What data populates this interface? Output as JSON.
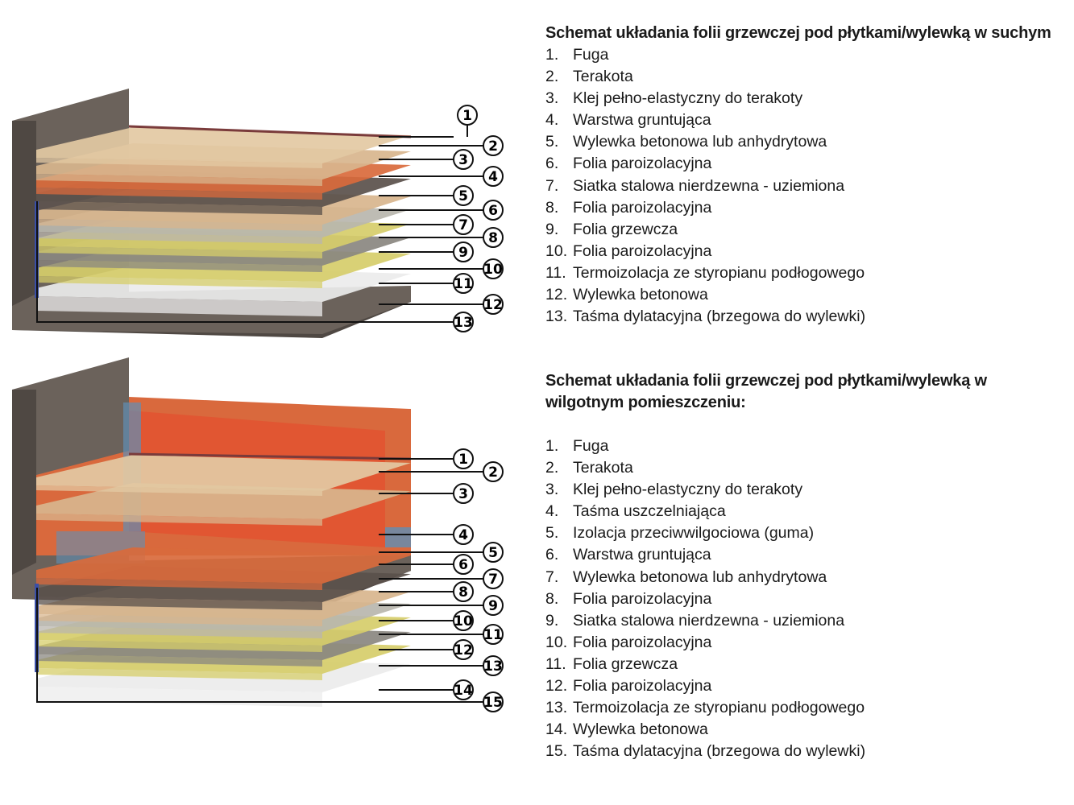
{
  "colors": {
    "wall": "#6b625b",
    "wall_dark": "#4f4843",
    "tile": "#e3c9a3",
    "adhesive": "#d8b58d",
    "primer": "#d96a3c",
    "screed": "#5a504b",
    "foil_vapor": "#d6cd6a",
    "mesh": "#b9b6ae",
    "heating_foil": "#8a8780",
    "styrofoam": "#ececec",
    "waterproofing": "#e2512f",
    "sealing_tape": "#5f8fb5",
    "dilatation_tape": "#3a4fa8"
  },
  "diagram_dry": {
    "callouts": [
      "1",
      "2",
      "3",
      "4",
      "5",
      "6",
      "7",
      "8",
      "9",
      "10",
      "11",
      "12",
      "13"
    ]
  },
  "diagram_wet": {
    "callouts": [
      "1",
      "2",
      "3",
      "4",
      "5",
      "6",
      "7",
      "8",
      "9",
      "10",
      "11",
      "12",
      "13",
      "14",
      "15"
    ]
  },
  "dry": {
    "title": "Schemat układania folii grzewczej pod płytkami/wylewką w suchym",
    "items": [
      {
        "n": "1.",
        "t": "Fuga"
      },
      {
        "n": "2.",
        "t": "Terakota"
      },
      {
        "n": "3.",
        "t": "Klej pełno-elastyczny do terakoty"
      },
      {
        "n": "4.",
        "t": "Warstwa gruntująca"
      },
      {
        "n": "5.",
        "t": "Wylewka betonowa lub anhydrytowa"
      },
      {
        "n": "6.",
        "t": "Folia paroizolacyjna"
      },
      {
        "n": "7.",
        "t": "Siatka stalowa nierdzewna - uziemiona"
      },
      {
        "n": "8.",
        "t": "Folia paroizolacyjna"
      },
      {
        "n": "9.",
        "t": "Folia grzewcza"
      },
      {
        "n": "10.",
        "t": "Folia paroizolacyjna"
      },
      {
        "n": "11.",
        "t": "Termoizolacja ze styropianu podłogowego"
      },
      {
        "n": "12.",
        "t": "Wylewka betonowa"
      },
      {
        "n": "13.",
        "t": "Taśma dylatacyjna (brzegowa do wylewki)"
      }
    ]
  },
  "wet": {
    "title": "Schemat układania folii grzewczej pod płytkami/wylewką w wilgotnym pomieszczeniu:",
    "items": [
      {
        "n": "1.",
        "t": "Fuga"
      },
      {
        "n": "2.",
        "t": "Terakota"
      },
      {
        "n": "3.",
        "t": "Klej pełno-elastyczny do terakoty"
      },
      {
        "n": "4.",
        "t": "Taśma uszczelniająca"
      },
      {
        "n": "5.",
        "t": "Izolacja przeciwwilgociowa (guma)"
      },
      {
        "n": "6.",
        "t": "Warstwa gruntująca"
      },
      {
        "n": "7.",
        "t": "Wylewka betonowa lub anhydrytowa"
      },
      {
        "n": "8.",
        "t": "Folia paroizolacyjna"
      },
      {
        "n": "9.",
        "t": "Siatka stalowa nierdzewna - uziemiona"
      },
      {
        "n": "10.",
        "t": "Folia paroizolacyjna"
      },
      {
        "n": "11.",
        "t": "Folia grzewcza"
      },
      {
        "n": "12.",
        "t": "Folia paroizolacyjna"
      },
      {
        "n": "13.",
        "t": "Termoizolacja ze styropianu podłogowego"
      },
      {
        "n": "14.",
        "t": "Wylewka betonowa"
      },
      {
        "n": "15.",
        "t": "Taśma dylatacyjna (brzegowa do wylewki)"
      }
    ]
  }
}
